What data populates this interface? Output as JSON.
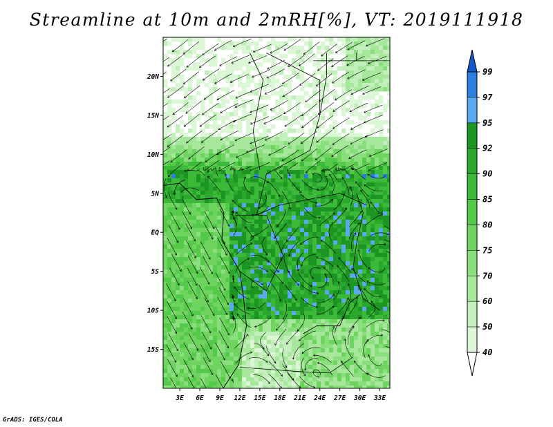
{
  "title": "Streamline at 10m and 2mRH[%], VT: 2019111918",
  "credit": "GrADS: IGES/COLA",
  "chart_data": {
    "type": "map",
    "variable": "2m relative humidity with 10m streamlines",
    "lat_ticks": [
      "20N",
      "15N",
      "10N",
      "5N",
      "EQ",
      "5S",
      "10S",
      "15S"
    ],
    "lat_values": [
      20,
      15,
      10,
      5,
      0,
      -5,
      -10,
      -15
    ],
    "lon_ticks": [
      "3E",
      "6E",
      "9E",
      "12E",
      "15E",
      "18E",
      "21E",
      "24E",
      "27E",
      "30E",
      "33E"
    ],
    "lon_values": [
      3,
      6,
      9,
      12,
      15,
      18,
      21,
      24,
      27,
      30,
      33
    ],
    "lat_range": [
      -20,
      25
    ],
    "lon_range": [
      0.5,
      34.5
    ],
    "colorbar": {
      "levels": [
        "40",
        "50",
        "60",
        "70",
        "75",
        "80",
        "85",
        "90",
        "92",
        "95",
        "97",
        "99"
      ],
      "colors": [
        "#f2fcef",
        "#dcf7d6",
        "#c2efbb",
        "#a6e79c",
        "#89de7d",
        "#6fd45f",
        "#55c94a",
        "#3db93a",
        "#2aa72d",
        "#1c9523",
        "#5aa9ee",
        "#2d7ee1",
        "#1558cc"
      ],
      "low_extension_color": "#ffffff",
      "high_extension_color": "#1558cc"
    }
  }
}
